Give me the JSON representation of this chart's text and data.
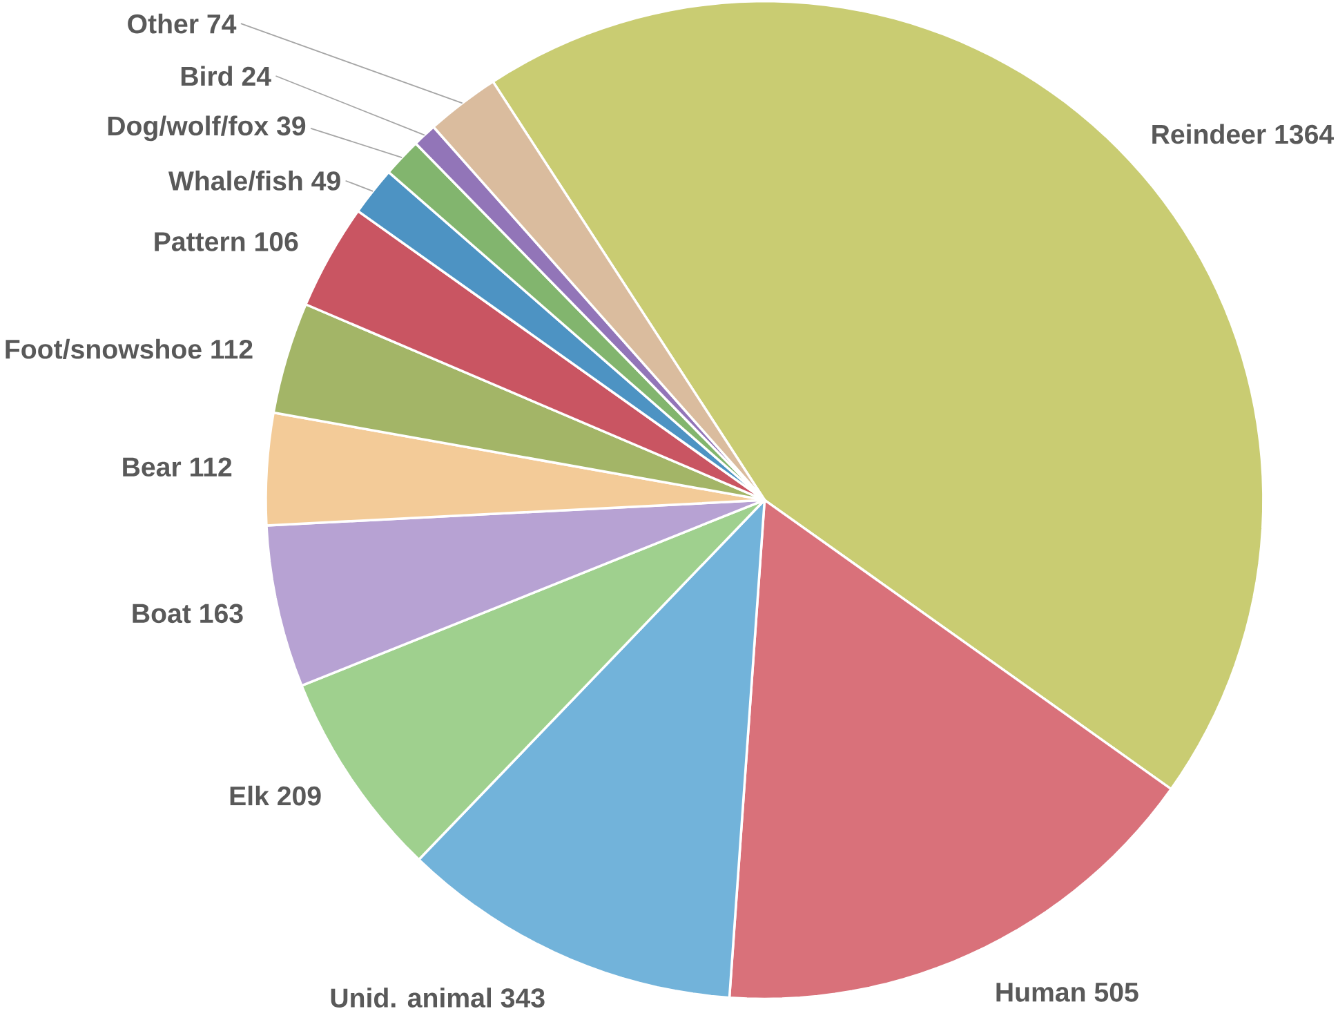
{
  "chart_data": {
    "type": "pie",
    "categories": [
      "Reindeer",
      "Human",
      "Unid. animal",
      "Elk",
      "Boat",
      "Bear",
      "Foot/snowshoe",
      "Pattern",
      "Whale/fish",
      "Dog/wolf/fox",
      "Bird",
      "Other"
    ],
    "values": [
      1364,
      505,
      343,
      209,
      163,
      112,
      112,
      106,
      49,
      39,
      24,
      74
    ],
    "colors": [
      "#c9cc72",
      "#d9717a",
      "#72b3da",
      "#9fd08e",
      "#b7a2d3",
      "#f3cb98",
      "#a3b567",
      "#c95562",
      "#4d93c3",
      "#82b56e",
      "#9275b8",
      "#dabc9e"
    ],
    "data_labels": true
  }
}
